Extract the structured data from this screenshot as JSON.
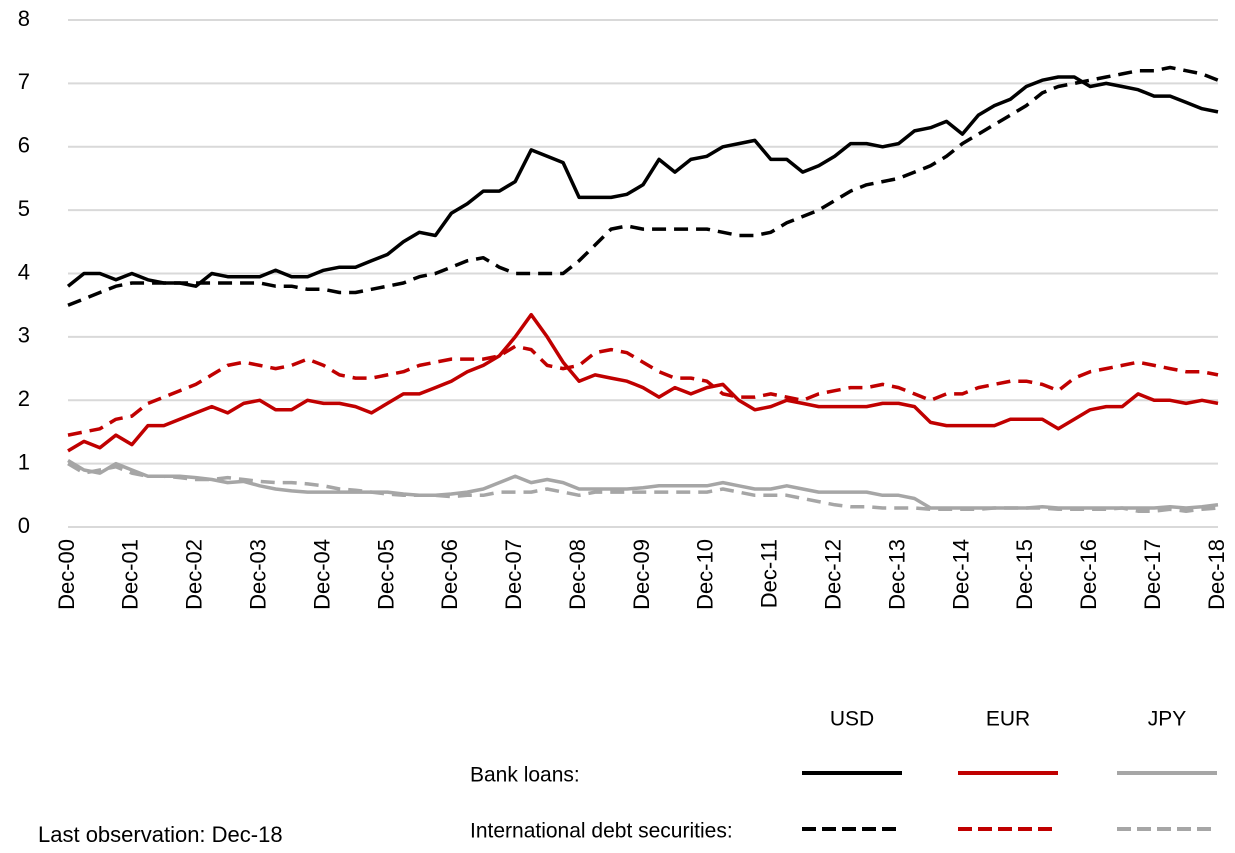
{
  "chart_data": {
    "type": "line",
    "categories": [
      "Dec-00",
      null,
      null,
      null,
      "Dec-01",
      null,
      null,
      null,
      "Dec-02",
      null,
      null,
      null,
      "Dec-03",
      null,
      null,
      null,
      "Dec-04",
      null,
      null,
      null,
      "Dec-05",
      null,
      null,
      null,
      "Dec-06",
      null,
      null,
      null,
      "Dec-07",
      null,
      null,
      null,
      "Dec-08",
      null,
      null,
      null,
      "Dec-09",
      null,
      null,
      null,
      "Dec-10",
      null,
      null,
      null,
      "Dec-11",
      null,
      null,
      null,
      "Dec-12",
      null,
      null,
      null,
      "Dec-13",
      null,
      null,
      null,
      "Dec-14",
      null,
      null,
      null,
      "Dec-15",
      null,
      null,
      null,
      "Dec-16",
      null,
      null,
      null,
      "Dec-17",
      null,
      null,
      null,
      "Dec-18"
    ],
    "ylim": [
      0,
      8
    ],
    "yticks": [
      0,
      1,
      2,
      3,
      4,
      5,
      6,
      7,
      8
    ],
    "grid": true,
    "legend": {
      "columns": [
        "USD",
        "EUR",
        "JPY"
      ],
      "rows": [
        "Bank loans:",
        "International debt securities:"
      ]
    },
    "series": [
      {
        "color": "#000000",
        "dash": false,
        "values": [
          3.8,
          4.0,
          4.0,
          3.9,
          4.0,
          3.9,
          3.85,
          3.85,
          3.8,
          4.0,
          3.95,
          3.95,
          3.95,
          4.05,
          3.95,
          3.95,
          4.05,
          4.1,
          4.1,
          4.2,
          4.3,
          4.5,
          4.65,
          4.6,
          4.95,
          5.1,
          5.3,
          5.3,
          5.45,
          5.95,
          5.85,
          5.75,
          5.2,
          5.2,
          5.2,
          5.25,
          5.4,
          5.8,
          5.6,
          5.8,
          5.85,
          6.0,
          6.05,
          6.1,
          5.8,
          5.8,
          5.6,
          5.7,
          5.85,
          6.05,
          6.05,
          6.0,
          6.05,
          6.25,
          6.3,
          6.4,
          6.2,
          6.5,
          6.65,
          6.75,
          6.95,
          7.05,
          7.1,
          7.1,
          6.95,
          7.0,
          6.95,
          6.9,
          6.8,
          6.8,
          6.7,
          6.6,
          6.55
        ]
      },
      {
        "color": "#c00000",
        "dash": false,
        "values": [
          1.2,
          1.35,
          1.25,
          1.45,
          1.3,
          1.6,
          1.6,
          1.7,
          1.8,
          1.9,
          1.8,
          1.95,
          2.0,
          1.85,
          1.85,
          2.0,
          1.95,
          1.95,
          1.9,
          1.8,
          1.95,
          2.1,
          2.1,
          2.2,
          2.3,
          2.45,
          2.55,
          2.7,
          3.0,
          3.35,
          3.0,
          2.6,
          2.3,
          2.4,
          2.35,
          2.3,
          2.2,
          2.05,
          2.2,
          2.1,
          2.2,
          2.25,
          2.0,
          1.85,
          1.9,
          2.0,
          1.95,
          1.9,
          1.9,
          1.9,
          1.9,
          1.95,
          1.95,
          1.9,
          1.65,
          1.6,
          1.6,
          1.6,
          1.6,
          1.7,
          1.7,
          1.7,
          1.55,
          1.7,
          1.85,
          1.9,
          1.9,
          2.1,
          2.0,
          2.0,
          1.95,
          2.0,
          1.95
        ]
      },
      {
        "color": "#a6a6a6",
        "dash": false,
        "values": [
          1.05,
          0.9,
          0.85,
          1.0,
          0.9,
          0.8,
          0.8,
          0.8,
          0.78,
          0.75,
          0.7,
          0.72,
          0.65,
          0.6,
          0.57,
          0.55,
          0.55,
          0.55,
          0.55,
          0.55,
          0.55,
          0.52,
          0.5,
          0.5,
          0.52,
          0.55,
          0.6,
          0.7,
          0.8,
          0.7,
          0.75,
          0.7,
          0.6,
          0.6,
          0.6,
          0.6,
          0.62,
          0.65,
          0.65,
          0.65,
          0.65,
          0.7,
          0.65,
          0.6,
          0.6,
          0.65,
          0.6,
          0.55,
          0.55,
          0.55,
          0.55,
          0.5,
          0.5,
          0.45,
          0.3,
          0.3,
          0.3,
          0.3,
          0.3,
          0.3,
          0.3,
          0.32,
          0.3,
          0.3,
          0.3,
          0.3,
          0.3,
          0.3,
          0.3,
          0.32,
          0.3,
          0.32,
          0.35
        ]
      },
      {
        "color": "#000000",
        "dash": true,
        "values": [
          3.5,
          3.6,
          3.7,
          3.8,
          3.85,
          3.85,
          3.85,
          3.85,
          3.85,
          3.85,
          3.85,
          3.85,
          3.85,
          3.8,
          3.8,
          3.75,
          3.75,
          3.7,
          3.7,
          3.75,
          3.8,
          3.85,
          3.95,
          4.0,
          4.1,
          4.2,
          4.25,
          4.1,
          4.0,
          4.0,
          4.0,
          4.0,
          4.2,
          4.45,
          4.7,
          4.75,
          4.7,
          4.7,
          4.7,
          4.7,
          4.7,
          4.65,
          4.6,
          4.6,
          4.65,
          4.8,
          4.9,
          5.0,
          5.15,
          5.3,
          5.4,
          5.45,
          5.5,
          5.6,
          5.7,
          5.85,
          6.05,
          6.2,
          6.35,
          6.5,
          6.65,
          6.85,
          6.95,
          7.0,
          7.05,
          7.1,
          7.15,
          7.2,
          7.2,
          7.25,
          7.2,
          7.15,
          7.05
        ]
      },
      {
        "color": "#c00000",
        "dash": true,
        "values": [
          1.45,
          1.5,
          1.55,
          1.7,
          1.75,
          1.95,
          2.05,
          2.15,
          2.25,
          2.4,
          2.55,
          2.6,
          2.55,
          2.5,
          2.55,
          2.65,
          2.55,
          2.4,
          2.35,
          2.35,
          2.4,
          2.45,
          2.55,
          2.6,
          2.65,
          2.65,
          2.65,
          2.7,
          2.85,
          2.8,
          2.55,
          2.5,
          2.55,
          2.75,
          2.8,
          2.75,
          2.6,
          2.45,
          2.35,
          2.35,
          2.3,
          2.1,
          2.05,
          2.05,
          2.1,
          2.05,
          2.0,
          2.1,
          2.15,
          2.2,
          2.2,
          2.25,
          2.2,
          2.1,
          2.0,
          2.1,
          2.1,
          2.2,
          2.25,
          2.3,
          2.3,
          2.25,
          2.15,
          2.35,
          2.45,
          2.5,
          2.55,
          2.6,
          2.55,
          2.5,
          2.45,
          2.45,
          2.4
        ]
      },
      {
        "color": "#a6a6a6",
        "dash": true,
        "values": [
          1.0,
          0.85,
          0.9,
          0.95,
          0.85,
          0.8,
          0.8,
          0.78,
          0.75,
          0.75,
          0.78,
          0.75,
          0.72,
          0.7,
          0.7,
          0.68,
          0.65,
          0.6,
          0.58,
          0.55,
          0.52,
          0.5,
          0.5,
          0.5,
          0.48,
          0.5,
          0.5,
          0.55,
          0.55,
          0.55,
          0.6,
          0.55,
          0.5,
          0.55,
          0.55,
          0.55,
          0.55,
          0.55,
          0.55,
          0.55,
          0.55,
          0.6,
          0.55,
          0.5,
          0.5,
          0.5,
          0.45,
          0.4,
          0.35,
          0.32,
          0.32,
          0.3,
          0.3,
          0.3,
          0.28,
          0.28,
          0.28,
          0.28,
          0.3,
          0.3,
          0.3,
          0.3,
          0.28,
          0.28,
          0.28,
          0.28,
          0.3,
          0.25,
          0.25,
          0.28,
          0.25,
          0.28,
          0.3
        ]
      }
    ],
    "footnote": "Last observation: Dec-18"
  }
}
